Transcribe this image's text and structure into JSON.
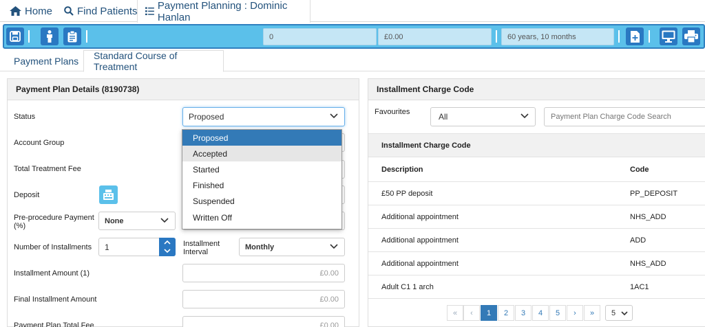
{
  "topnav": {
    "home": "Home",
    "find_patients": "Find Patients",
    "payment_planning": "Payment Planning : Dominic Hanlan"
  },
  "toolbar": {
    "field_count": "0",
    "field_balance": "£0.00",
    "field_age": "60 years, 10 months"
  },
  "tabs": [
    "Payment Plans",
    "Standard Course of Treatment"
  ],
  "left_panel": {
    "title": "Payment Plan Details (8190738)",
    "status_label": "Status",
    "status_value": "Proposed",
    "status_options": [
      "Proposed",
      "Accepted",
      "Started",
      "Finished",
      "Suspended",
      "Written Off"
    ],
    "account_group_label": "Account Group",
    "total_fee_label": "Total Treatment Fee",
    "deposit_label": "Deposit",
    "preproc_label": "Pre-procedure Payment (%)",
    "preproc_value": "None",
    "num_installments_label": "Number of Installments",
    "num_installments_value": "1",
    "interval_label": "Installment Interval",
    "interval_value": "Monthly",
    "installment_amount_label": "Installment Amount (1)",
    "installment_amount_value": "£0.00",
    "final_installment_label": "Final Installment Amount",
    "final_installment_value": "£0.00",
    "plan_total_label": "Payment Plan Total Fee",
    "plan_total_value": "£0.00"
  },
  "right_panel": {
    "title": "Installment Charge Code",
    "favourites_label": "Favourites",
    "favourites_value": "All",
    "search_placeholder": "Payment Plan Charge Code Search",
    "table_title": "Installment Charge Code",
    "col_description": "Description",
    "col_code": "Code",
    "rows": [
      {
        "description": "£50 PP deposit",
        "code": "PP_DEPOSIT"
      },
      {
        "description": "Additional appointment",
        "code": "NHS_ADD"
      },
      {
        "description": "Additional appointment",
        "code": "ADD"
      },
      {
        "description": "Additional appointment",
        "code": "NHS_ADD"
      },
      {
        "description": "Adult C1 1 arch",
        "code": "1AC1"
      }
    ],
    "pagination": {
      "first": "«",
      "prev": "‹",
      "pages": [
        "1",
        "2",
        "3",
        "4",
        "5"
      ],
      "next": "›",
      "last": "»",
      "page_size": "5"
    }
  },
  "colors": {
    "toolbar_bg": "#5bc0ea",
    "button_blue": "#2a78c2",
    "link_blue": "#23527c",
    "selected": "#337ab7"
  }
}
